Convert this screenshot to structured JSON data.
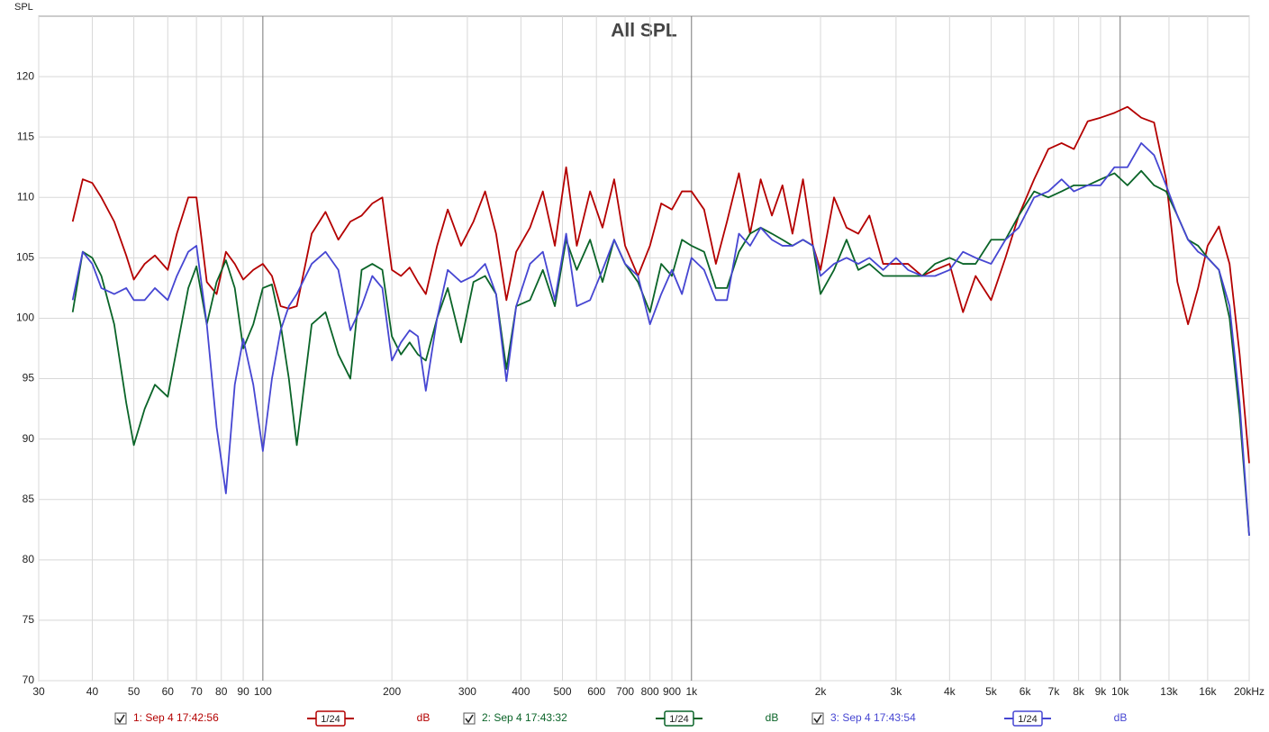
{
  "chart_data": {
    "type": "line",
    "title": "All SPL",
    "y_label": "SPL",
    "x_scale": "log",
    "grid": true,
    "xlim": [
      30,
      20000
    ],
    "ylim": [
      70,
      125
    ],
    "xticks": [
      30,
      40,
      50,
      60,
      70,
      80,
      90,
      100,
      200,
      300,
      400,
      500,
      600,
      700,
      800,
      900,
      {
        "value": 1000,
        "label": "1k"
      },
      {
        "value": 2000,
        "label": "2k"
      },
      {
        "value": 3000,
        "label": "3k"
      },
      {
        "value": 4000,
        "label": "4k"
      },
      {
        "value": 5000,
        "label": "5k"
      },
      {
        "value": 6000,
        "label": "6k"
      },
      {
        "value": 7000,
        "label": "7k"
      },
      {
        "value": 8000,
        "label": "8k"
      },
      {
        "value": 9000,
        "label": "9k"
      },
      {
        "value": 10000,
        "label": "10k"
      },
      {
        "value": 13000,
        "label": "13k"
      },
      {
        "value": 16000,
        "label": "16k"
      },
      {
        "value": 20000,
        "label": "20kHz"
      }
    ],
    "yticks": [
      70,
      75,
      80,
      85,
      90,
      95,
      100,
      105,
      110,
      115,
      120
    ],
    "x": [
      36,
      38,
      40,
      42,
      45,
      48,
      50,
      53,
      56,
      60,
      63,
      67,
      70,
      74,
      78,
      82,
      86,
      90,
      95,
      100,
      105,
      110,
      115,
      120,
      130,
      140,
      150,
      160,
      170,
      180,
      190,
      200,
      210,
      220,
      230,
      240,
      255,
      270,
      290,
      310,
      330,
      350,
      370,
      390,
      420,
      450,
      480,
      510,
      540,
      580,
      620,
      660,
      700,
      750,
      800,
      850,
      900,
      950,
      1000,
      1070,
      1140,
      1210,
      1290,
      1370,
      1450,
      1540,
      1630,
      1720,
      1820,
      1920,
      2000,
      2150,
      2300,
      2450,
      2600,
      2800,
      3000,
      3200,
      3450,
      3700,
      4000,
      4300,
      4600,
      5000,
      5400,
      5800,
      6300,
      6800,
      7300,
      7800,
      8400,
      9000,
      9700,
      10400,
      11200,
      12000,
      12800,
      13600,
      14400,
      15200,
      16000,
      17000,
      18000,
      19000,
      20000
    ],
    "series": [
      {
        "name": "1: Sep 4 17:42:56",
        "color": "#b40000",
        "smoothing": "1/24",
        "unit": "dB",
        "values": [
          108,
          111.5,
          111.2,
          110,
          108,
          105.2,
          103.2,
          104.5,
          105.2,
          104,
          107,
          110,
          110,
          103,
          102,
          105.5,
          104.5,
          103.2,
          104,
          104.5,
          103.5,
          101,
          100.8,
          101,
          107,
          108.8,
          106.5,
          108,
          108.5,
          109.5,
          110,
          104,
          103.5,
          104.2,
          103,
          102,
          106,
          109,
          106,
          108,
          110.5,
          107,
          101.5,
          105.5,
          107.5,
          110.5,
          106,
          112.5,
          106,
          110.5,
          107.5,
          111.5,
          106,
          103.5,
          106,
          109.5,
          109,
          110.5,
          110.5,
          109,
          104.5,
          108,
          112,
          107,
          111.5,
          108.5,
          111,
          107,
          111.5,
          106,
          104,
          110,
          107.5,
          107,
          108.5,
          104.5,
          104.5,
          104.5,
          103.5,
          104,
          104.5,
          100.5,
          103.5,
          101.5,
          105,
          108.5,
          111.5,
          114,
          114.5,
          114,
          116.3,
          116.6,
          117,
          117.5,
          116.6,
          116.2,
          111.5,
          103,
          99.5,
          102.5,
          106,
          107.6,
          104.5,
          97,
          88
        ]
      },
      {
        "name": "2: Sep 4 17:43:32",
        "color": "#0a6428",
        "smoothing": "1/24",
        "unit": "dB",
        "values": [
          100.5,
          105.5,
          105,
          103.5,
          99.5,
          93,
          89.5,
          92.5,
          94.5,
          93.5,
          97.5,
          102.5,
          104.3,
          99.5,
          103,
          104.8,
          102.5,
          97.5,
          99.5,
          102.5,
          102.8,
          99.5,
          95,
          89.5,
          99.5,
          100.5,
          97,
          95,
          104,
          104.5,
          104,
          98.5,
          97,
          98,
          97,
          96.5,
          100,
          102.5,
          98,
          103,
          103.5,
          102,
          95.8,
          101,
          101.5,
          104,
          101,
          106.5,
          104,
          106.5,
          103,
          106.5,
          104.5,
          103,
          100.5,
          104.5,
          103.5,
          106.5,
          106,
          105.5,
          102.5,
          102.5,
          105.5,
          107,
          107.5,
          107,
          106.5,
          106,
          106.5,
          106,
          102,
          104,
          106.5,
          104,
          104.5,
          103.5,
          103.5,
          103.5,
          103.5,
          104.5,
          105,
          104.5,
          104.5,
          106.5,
          106.5,
          108.5,
          110.5,
          110,
          110.5,
          111,
          111,
          111.5,
          112,
          111,
          112.2,
          111,
          110.5,
          108.5,
          106.5,
          106,
          105,
          104,
          100,
          92,
          82
        ]
      },
      {
        "name": "3: Sep 4 17:43:54",
        "color": "#4646d2",
        "smoothing": "1/24",
        "unit": "dB",
        "values": [
          101.5,
          105.5,
          104.5,
          102.5,
          102,
          102.5,
          101.5,
          101.5,
          102.5,
          101.5,
          103.5,
          105.5,
          106,
          99.5,
          91,
          85.5,
          94.5,
          98.3,
          94.5,
          89,
          95,
          99,
          101,
          102,
          104.5,
          105.5,
          104,
          99,
          101,
          103.5,
          102.5,
          96.5,
          98,
          99,
          98.5,
          94,
          100,
          104,
          103,
          103.5,
          104.5,
          102,
          94.8,
          101,
          104.5,
          105.5,
          101.5,
          107,
          101,
          101.5,
          104,
          106.5,
          104.5,
          103.5,
          99.5,
          102,
          104,
          102,
          105,
          104,
          101.5,
          101.5,
          107,
          106,
          107.5,
          106.5,
          106,
          106,
          106.5,
          106,
          103.5,
          104.5,
          105,
          104.5,
          105,
          104,
          105,
          104,
          103.5,
          103.5,
          104,
          105.5,
          105,
          104.5,
          106.5,
          107.5,
          110,
          110.5,
          111.5,
          110.5,
          111,
          111,
          112.5,
          112.5,
          114.5,
          113.5,
          111,
          108.5,
          106.5,
          105.5,
          105,
          104,
          101,
          93,
          82
        ]
      }
    ]
  }
}
